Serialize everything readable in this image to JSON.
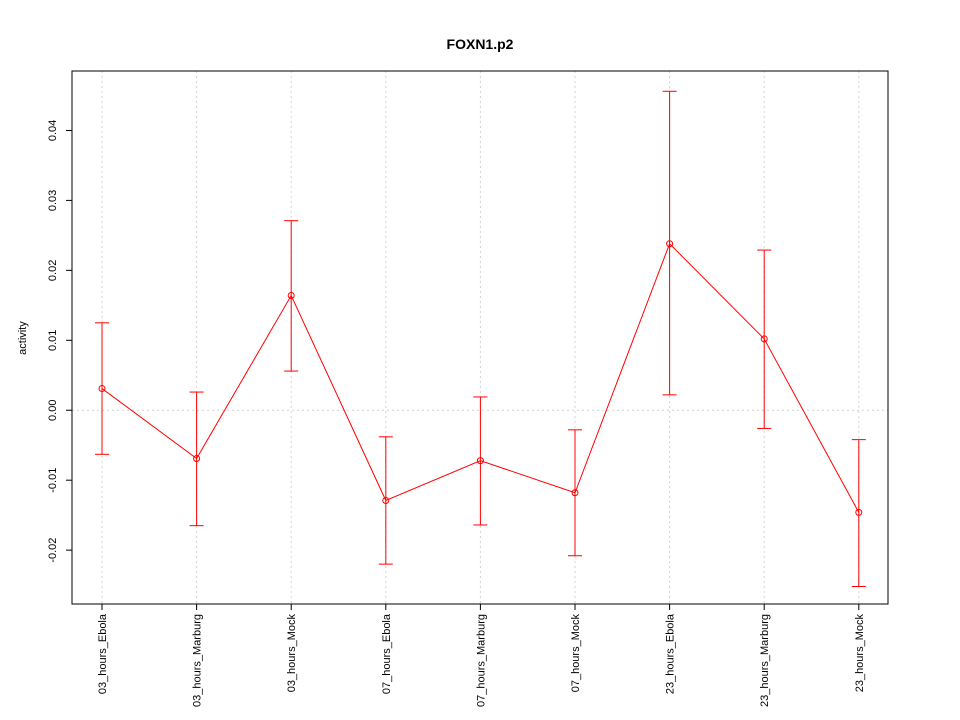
{
  "chart_data": {
    "type": "line",
    "title": "FOXN1.p2",
    "xlabel": "",
    "ylabel": "activity",
    "categories": [
      "03_hours_Ebola",
      "03_hours_Marburg",
      "03_hours_Mock",
      "07_hours_Ebola",
      "07_hours_Marburg",
      "07_hours_Mock",
      "23_hours_Ebola",
      "23_hours_Marburg",
      "23_hours_Mock"
    ],
    "series": [
      {
        "values": [
          0.0031,
          -0.0069,
          0.0164,
          -0.0129,
          -0.0072,
          -0.0118,
          0.0238,
          0.0102,
          -0.0146
        ],
        "upper": [
          0.0125,
          0.0026,
          0.0271,
          -0.0038,
          0.0019,
          -0.0028,
          0.0456,
          0.0229,
          -0.0042
        ],
        "lower": [
          -0.0063,
          -0.0165,
          0.0056,
          -0.022,
          -0.0164,
          -0.0208,
          0.0022,
          -0.0026,
          -0.0252
        ],
        "color": "#ff0000"
      }
    ],
    "ylim": [
      -0.0277,
      0.0485
    ],
    "yticks": [
      -0.02,
      -0.01,
      0.0,
      0.01,
      0.02,
      0.03,
      0.04
    ],
    "ytick_labels": [
      "-0.02",
      "-0.01",
      "0.00",
      "0.01",
      "0.02",
      "0.03",
      "0.04"
    ],
    "grid": true
  }
}
